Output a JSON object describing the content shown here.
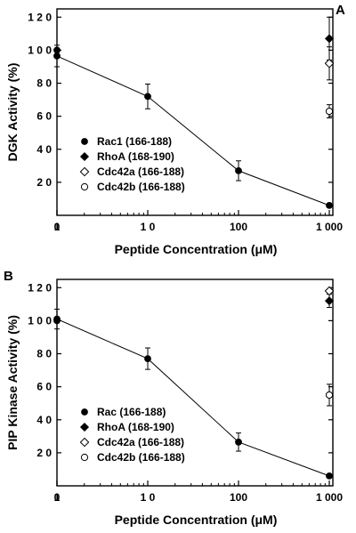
{
  "chart_data": [
    {
      "type": "line",
      "panel_label": "A",
      "xlabel": "Peptide Concentration (μM)",
      "ylabel": "DGK Activity (%)",
      "x_scale": "log",
      "x_ticks": [
        0,
        1,
        10,
        100,
        1000
      ],
      "x_tick_labels": [
        "0",
        "1",
        "1 0",
        "100",
        "1 000"
      ],
      "y_ticks": [
        20,
        40,
        60,
        80,
        100,
        120
      ],
      "y_tick_labels": [
        "2 0",
        "4 0",
        "6 0",
        "8 0",
        "1 0 0",
        "1 2 0"
      ],
      "ylim": [
        0,
        125
      ],
      "series": [
        {
          "name": "Rac1 (166-188)",
          "marker": "filled-circle",
          "connected": true,
          "x": [
            0,
            1,
            10,
            100,
            1000
          ],
          "y": [
            100,
            96.5,
            72,
            27,
            6
          ],
          "err": [
            0,
            6.5,
            7.5,
            6,
            0
          ]
        },
        {
          "name": "RhoA (168-190)",
          "marker": "filled-diamond",
          "connected": false,
          "x": [
            1000
          ],
          "y": [
            107
          ],
          "err": [
            13
          ]
        },
        {
          "name": "Cdc42a (166-188)",
          "marker": "open-diamond",
          "connected": false,
          "x": [
            1000
          ],
          "y": [
            92
          ],
          "err": [
            10
          ]
        },
        {
          "name": "Cdc42b (166-188)",
          "marker": "open-circle",
          "connected": false,
          "x": [
            1000
          ],
          "y": [
            63
          ],
          "err": [
            4
          ]
        }
      ],
      "legend_position": "bottom-left"
    },
    {
      "type": "line",
      "panel_label": "B",
      "xlabel": "Peptide Concentration (μM)",
      "ylabel": "PIP Kinase Activity (%)",
      "x_scale": "log",
      "x_ticks": [
        0,
        1,
        10,
        100,
        1000
      ],
      "x_tick_labels": [
        "0",
        "1",
        "1 0",
        "100",
        "1 000"
      ],
      "y_ticks": [
        20,
        40,
        60,
        80,
        100,
        120
      ],
      "y_tick_labels": [
        "2 0",
        "4 0",
        "6 0",
        "8 0",
        "1 0 0",
        "1 2 0"
      ],
      "ylim": [
        0,
        125
      ],
      "series": [
        {
          "name": "Rac (166-188)",
          "marker": "filled-circle",
          "connected": true,
          "x": [
            0,
            1,
            10,
            100,
            1000
          ],
          "y": [
            100,
            101,
            77,
            26.5,
            6
          ],
          "err": [
            0,
            6,
            6.5,
            5.5,
            0
          ]
        },
        {
          "name": "RhoA (168-190)",
          "marker": "filled-diamond",
          "connected": false,
          "x": [
            1000
          ],
          "y": [
            112
          ],
          "err": [
            4
          ]
        },
        {
          "name": "Cdc42a (166-188)",
          "marker": "open-diamond",
          "connected": false,
          "x": [
            1000
          ],
          "y": [
            118
          ],
          "err": [
            0
          ]
        },
        {
          "name": "Cdc42b (166-188)",
          "marker": "open-circle",
          "connected": false,
          "x": [
            1000
          ],
          "y": [
            55
          ],
          "err": [
            6.5
          ]
        }
      ],
      "legend_position": "bottom-left"
    }
  ]
}
